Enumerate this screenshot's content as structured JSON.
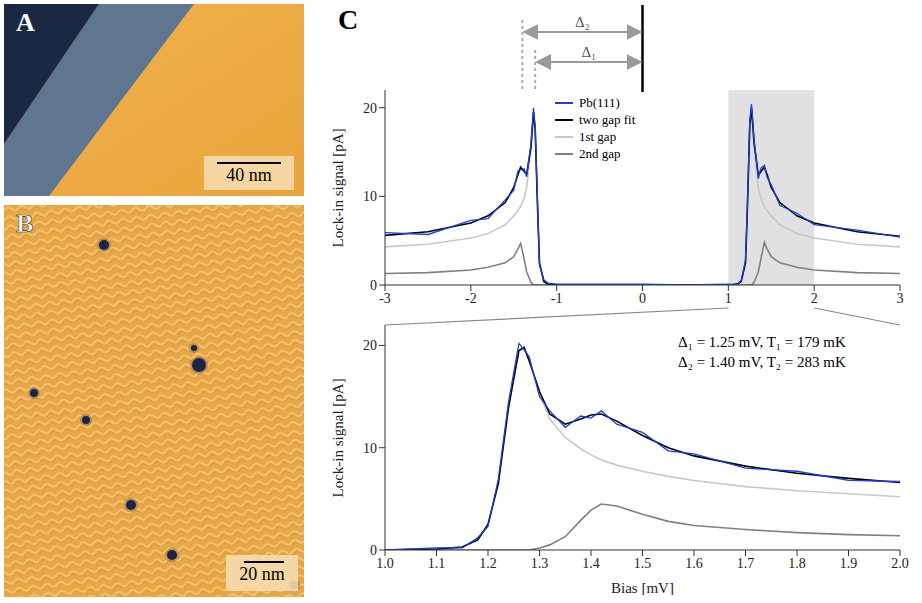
{
  "panels": [
    {
      "letter": "A",
      "scale_bar": "40 nm"
    },
    {
      "letter": "B",
      "scale_bar": "20 nm"
    },
    {
      "letter": "C"
    }
  ],
  "chart_data": [
    {
      "type": "line",
      "x": [
        -3,
        -2.5,
        -2,
        -1.8,
        -1.6,
        -1.5,
        -1.45,
        -1.42,
        -1.38,
        -1.35,
        -1.3,
        -1.27,
        -1.25,
        -1.22,
        -1.2,
        -1.15,
        -1.1,
        -1,
        -0.5,
        0,
        0.5,
        1,
        1.1,
        1.15,
        1.2,
        1.22,
        1.25,
        1.27,
        1.3,
        1.35,
        1.38,
        1.42,
        1.45,
        1.5,
        1.6,
        1.8,
        2,
        2.5,
        3
      ],
      "series": [
        {
          "name": "Pb(111)",
          "color": "#1f3fd6",
          "values": [
            5.9,
            5.7,
            7.3,
            7.5,
            9.6,
            10.7,
            12.9,
            13.0,
            13.1,
            12.2,
            15.9,
            20.0,
            17.8,
            8.4,
            2.2,
            0.6,
            0.2,
            0.1,
            0.1,
            0.1,
            0,
            0.1,
            0,
            0.5,
            2.8,
            8.3,
            18.6,
            20.4,
            16.4,
            12.0,
            13.2,
            13.5,
            12.2,
            11.3,
            9.0,
            8.1,
            6.8,
            6.2,
            5.4
          ]
        },
        {
          "name": "two gap fit",
          "color": "#000000",
          "values": [
            5.6,
            6.0,
            7.0,
            7.8,
            9.3,
            11.0,
            12.5,
            13.3,
            12.8,
            12.5,
            15.5,
            19.5,
            17.5,
            8.0,
            2.5,
            0.4,
            0.1,
            0,
            0,
            0,
            0,
            0,
            0.1,
            0.4,
            2.5,
            8.0,
            18.0,
            20.0,
            16.0,
            12.4,
            12.8,
            13.3,
            12.5,
            11.0,
            9.3,
            7.8,
            7.0,
            6.0,
            5.5
          ]
        },
        {
          "name": "1st gap",
          "color": "#c8c8c8",
          "values": [
            4.3,
            4.6,
            5.3,
            5.8,
            6.8,
            7.8,
            8.4,
            8.9,
            9.8,
            11.0,
            15.2,
            19.5,
            17.5,
            8.0,
            2.5,
            0.4,
            0.1,
            0,
            0,
            0,
            0,
            0,
            0.1,
            0.4,
            2.5,
            8.0,
            18.0,
            20.0,
            15.7,
            10.9,
            9.8,
            8.9,
            8.4,
            7.8,
            6.8,
            5.8,
            5.3,
            4.6,
            4.3
          ]
        },
        {
          "name": "2nd gap",
          "color": "#808080",
          "values": [
            1.3,
            1.4,
            1.7,
            2.0,
            2.5,
            3.2,
            4.1,
            4.7,
            3.0,
            1.5,
            0.3,
            0,
            0,
            0,
            0,
            0,
            0,
            0,
            0,
            0,
            0,
            0,
            0,
            0,
            0,
            0,
            0,
            0,
            0.3,
            1.5,
            3.0,
            4.8,
            4.1,
            3.2,
            2.5,
            2.0,
            1.7,
            1.4,
            1.3
          ]
        }
      ],
      "xlim": [
        -3,
        3
      ],
      "xticks": [
        -3,
        -2,
        -1,
        0,
        1,
        2,
        3
      ],
      "ylim": [
        0,
        22
      ],
      "yticks": [
        0,
        10,
        20
      ],
      "y_label": "Lock-in signal [pA]",
      "legend": "top",
      "highlight": [
        1,
        2
      ],
      "gap_reference": 0,
      "gap_markers": [
        {
          "label": "Δ₂",
          "x": -1.4
        },
        {
          "label": "Δ₁",
          "x": -1.25
        }
      ]
    },
    {
      "type": "line",
      "x": [
        1.0,
        1.1,
        1.15,
        1.18,
        1.2,
        1.22,
        1.24,
        1.26,
        1.27,
        1.28,
        1.3,
        1.32,
        1.35,
        1.38,
        1.4,
        1.42,
        1.45,
        1.5,
        1.55,
        1.6,
        1.7,
        1.8,
        1.9,
        2.0
      ],
      "series": [
        {
          "color": "#1f3fd6",
          "values": [
            0,
            0.2,
            0.2,
            1.2,
            2.3,
            6.9,
            14.5,
            20.2,
            19.6,
            18.9,
            15.0,
            13.6,
            12.0,
            13.1,
            12.9,
            13.6,
            12.3,
            11.5,
            9.7,
            9.4,
            8.0,
            7.7,
            6.8,
            6.7
          ]
        },
        {
          "color": "#000000",
          "values": [
            0,
            0.1,
            0.3,
            1.0,
            2.5,
            6.5,
            14,
            19.5,
            19.8,
            18.5,
            15.5,
            13.3,
            12.3,
            12.8,
            13.2,
            13.3,
            12.6,
            11.2,
            10.0,
            9.2,
            8.2,
            7.5,
            7.0,
            6.6
          ]
        },
        {
          "color": "#c8c8c8",
          "values": [
            0,
            0.1,
            0.3,
            1.0,
            2.5,
            6.5,
            14,
            19.5,
            19.8,
            18.5,
            15.3,
            12.8,
            11.0,
            9.9,
            9.3,
            8.8,
            8.3,
            7.7,
            7.2,
            6.8,
            6.2,
            5.8,
            5.5,
            5.2
          ]
        },
        {
          "color": "#808080",
          "values": [
            0,
            0,
            0,
            0,
            0,
            0,
            0,
            0,
            0,
            0,
            0.2,
            0.5,
            1.3,
            2.9,
            3.9,
            4.5,
            4.3,
            3.5,
            2.8,
            2.4,
            2.0,
            1.7,
            1.5,
            1.4
          ]
        }
      ],
      "xlim": [
        1.0,
        2.0
      ],
      "xticks": [
        {
          "value": 1,
          "label": "1.0"
        },
        1.1,
        1.2,
        1.3,
        1.4,
        1.5,
        1.6,
        1.7,
        1.8,
        1.9,
        {
          "value": 2,
          "label": "2.0"
        }
      ],
      "ylim": [
        0,
        22
      ],
      "yticks": [
        0,
        10,
        20
      ],
      "x_label": "Bias [mV]",
      "y_label": "Lock-in signal [pA]",
      "annotations": [
        "Δ₁ = 1.25 mV, T₁ = 179 mK",
        "Δ₂ = 1.40 mV, T₂ = 283 mK"
      ]
    }
  ]
}
